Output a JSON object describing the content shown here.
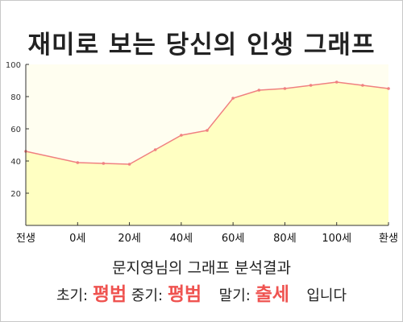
{
  "title": "재미로 보는 당신의 인생 그래프",
  "chart_data": {
    "type": "area",
    "x": [
      0,
      1,
      1.5,
      2,
      2.5,
      3,
      3.5,
      4,
      4.5,
      5,
      5.5,
      6,
      6.5,
      7
    ],
    "values": [
      46,
      39,
      38.5,
      38,
      47,
      56,
      59,
      79,
      84,
      85,
      87,
      89,
      87,
      85
    ],
    "x_ticks": [
      "전생",
      "0세",
      "20세",
      "40세",
      "60세",
      "80세",
      "100세",
      "환생"
    ],
    "y_ticks": [
      20,
      40,
      60,
      80,
      100
    ],
    "ylim": [
      0,
      100
    ],
    "grid": false,
    "colors": {
      "fill": "#ffffc2",
      "line": "#f08080",
      "plot_bg": "#fffef0",
      "axis": "#333333"
    }
  },
  "summary": "문지영님의 그래프 분석결과",
  "result": {
    "early_label": "초기:",
    "early_value": "평범",
    "mid_label": "중기:",
    "mid_value": "평범",
    "late_label": "말기:",
    "late_value": "출세",
    "ending": "입니다"
  }
}
